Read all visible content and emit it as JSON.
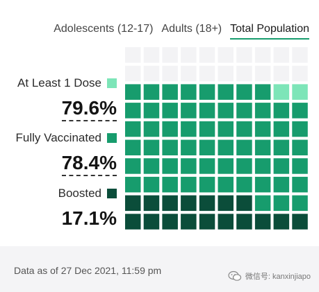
{
  "tabs": [
    {
      "label": "Adolescents (12-17)",
      "active": false
    },
    {
      "label": "Adults (18+)",
      "active": false
    },
    {
      "label": "Total Population",
      "active": true
    }
  ],
  "metrics": {
    "first_dose": {
      "label": "At Least 1 Dose",
      "value": "79.6%",
      "color": "#7de5b8"
    },
    "fully_vaccinated": {
      "label": "Fully Vaccinated",
      "value": "78.4%",
      "color": "#179c6d"
    },
    "boosted": {
      "label": "Boosted",
      "value": "17.1%",
      "color": "#0b4d3a"
    }
  },
  "waffle": {
    "columns": 10,
    "rows": 10,
    "empty_color": "#f3f3f5",
    "first_dose_pct": 79.6,
    "fully_vaccinated_pct": 78.4,
    "boosted_pct": 17.1
  },
  "footer": {
    "date_text": "Data as of 27 Dec 2021, 11:59 pm",
    "wechat_text": "微信号: kanxinjiapo",
    "wechat_icon": "wechat-icon"
  }
}
